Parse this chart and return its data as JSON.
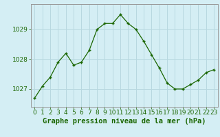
{
  "x": [
    0,
    1,
    2,
    3,
    4,
    5,
    6,
    7,
    8,
    9,
    10,
    11,
    12,
    13,
    14,
    15,
    16,
    17,
    18,
    19,
    20,
    21,
    22,
    23
  ],
  "y": [
    1026.7,
    1027.1,
    1027.4,
    1027.9,
    1028.2,
    1027.8,
    1027.9,
    1028.3,
    1029.0,
    1029.2,
    1029.2,
    1029.5,
    1029.2,
    1029.0,
    1028.6,
    1028.15,
    1027.7,
    1027.2,
    1027.0,
    1027.0,
    1027.15,
    1027.3,
    1027.55,
    1027.65
  ],
  "line_color": "#1a6600",
  "marker_color": "#1a6600",
  "bg_color": "#d4eef4",
  "grid_color": "#b8d8e0",
  "axis_label_color": "#1a6600",
  "ylabel_ticks": [
    1027,
    1028,
    1029
  ],
  "xlabel": "Graphe pression niveau de la mer (hPa)",
  "ylim": [
    1026.4,
    1029.85
  ],
  "xlim": [
    -0.5,
    23.5
  ],
  "tick_fontsize": 6.5,
  "xlabel_fontsize": 7.5
}
